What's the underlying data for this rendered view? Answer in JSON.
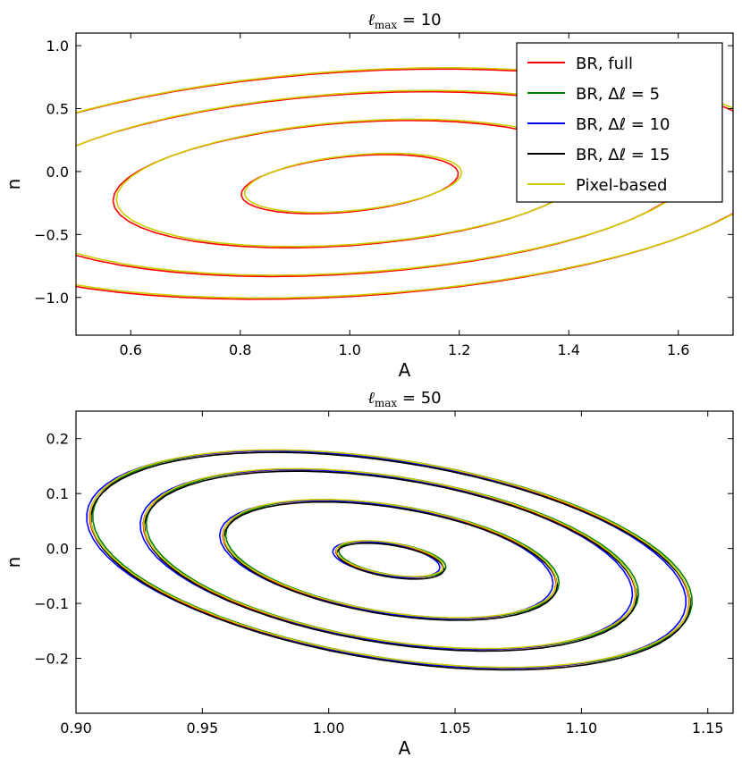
{
  "chart_data": [
    {
      "type": "line",
      "title": {
        "ell": "ℓ",
        "sub": "max",
        "rest": " = 10"
      },
      "xlabel": "A",
      "ylabel": "n",
      "xlim": [
        0.5,
        1.7
      ],
      "ylim": [
        -1.3,
        1.1
      ],
      "xticks": [
        0.6,
        0.8,
        1.0,
        1.2,
        1.4,
        1.6
      ],
      "xtick_labels": [
        "0.6",
        "0.8",
        "1.0",
        "1.2",
        "1.4",
        "1.6"
      ],
      "yticks": [
        -1.0,
        -0.5,
        0.0,
        0.5,
        1.0
      ],
      "ytick_labels": [
        "−1.0",
        "−0.5",
        "0.0",
        "0.5",
        "1.0"
      ],
      "grid": false,
      "legend": "top-right",
      "legend_entries": [
        {
          "label": "BR, full",
          "color": "#ff0000"
        },
        {
          "label": "BR, Δℓ = 5",
          "color": "#008000"
        },
        {
          "label": "BR, Δℓ = 10",
          "color": "#0000ff"
        },
        {
          "label": "BR, Δℓ = 15",
          "color": "#000000"
        },
        {
          "label": "Pixel-based",
          "color": "#cccc00"
        }
      ],
      "contour_center": [
        1.0,
        -0.1
      ],
      "contour_axes": [
        [
          0.16,
          0.22
        ],
        [
          0.37,
          0.46
        ],
        [
          0.55,
          0.66
        ],
        [
          0.69,
          0.82
        ]
      ],
      "contour_scale": [
        0.07,
        0.75
      ],
      "series": [
        {
          "name": "BR, full",
          "color": "#ff0000",
          "offset": [
            0,
            0
          ]
        },
        {
          "name": "Pixel-based",
          "color": "#cccc00",
          "offset": [
            0.006,
            0.01
          ]
        }
      ]
    },
    {
      "type": "line",
      "title": {
        "ell": "ℓ",
        "sub": "max",
        "rest": " = 50"
      },
      "xlabel": "A",
      "ylabel": "n",
      "xlim": [
        0.9,
        1.16
      ],
      "ylim": [
        -0.3,
        0.25
      ],
      "xticks": [
        0.9,
        0.95,
        1.0,
        1.05,
        1.1,
        1.15
      ],
      "xtick_labels": [
        "0.90",
        "0.95",
        "1.00",
        "1.05",
        "1.10",
        "1.15"
      ],
      "yticks": [
        -0.2,
        -0.1,
        0.0,
        0.1,
        0.2
      ],
      "ytick_labels": [
        "−0.2",
        "−0.1",
        "0.0",
        "0.1",
        "0.2"
      ],
      "grid": false,
      "contour_center": [
        1.024,
        -0.02
      ],
      "contour_axes": [
        [
          0.027,
          0.03
        ],
        [
          0.084,
          0.101
        ],
        [
          0.124,
          0.155
        ],
        [
          0.151,
          0.187
        ]
      ],
      "contour_scale": [
        0.0075,
        0.65
      ],
      "series": [
        {
          "name": "BR, full",
          "color": "#ff0000",
          "offset": [
            0,
            0
          ]
        },
        {
          "name": "BR, Δℓ = 5",
          "color": "#008000",
          "offset": [
            0.0012,
            0.001
          ]
        },
        {
          "name": "BR, Δℓ = 10",
          "color": "#0000ff",
          "offset": [
            -0.0012,
            0.0
          ]
        },
        {
          "name": "BR, Δℓ = 15",
          "color": "#000000",
          "offset": [
            0.0005,
            -0.003
          ]
        },
        {
          "name": "Pixel-based",
          "color": "#cccc00",
          "offset": [
            0.0002,
            0.0015
          ]
        }
      ]
    }
  ]
}
